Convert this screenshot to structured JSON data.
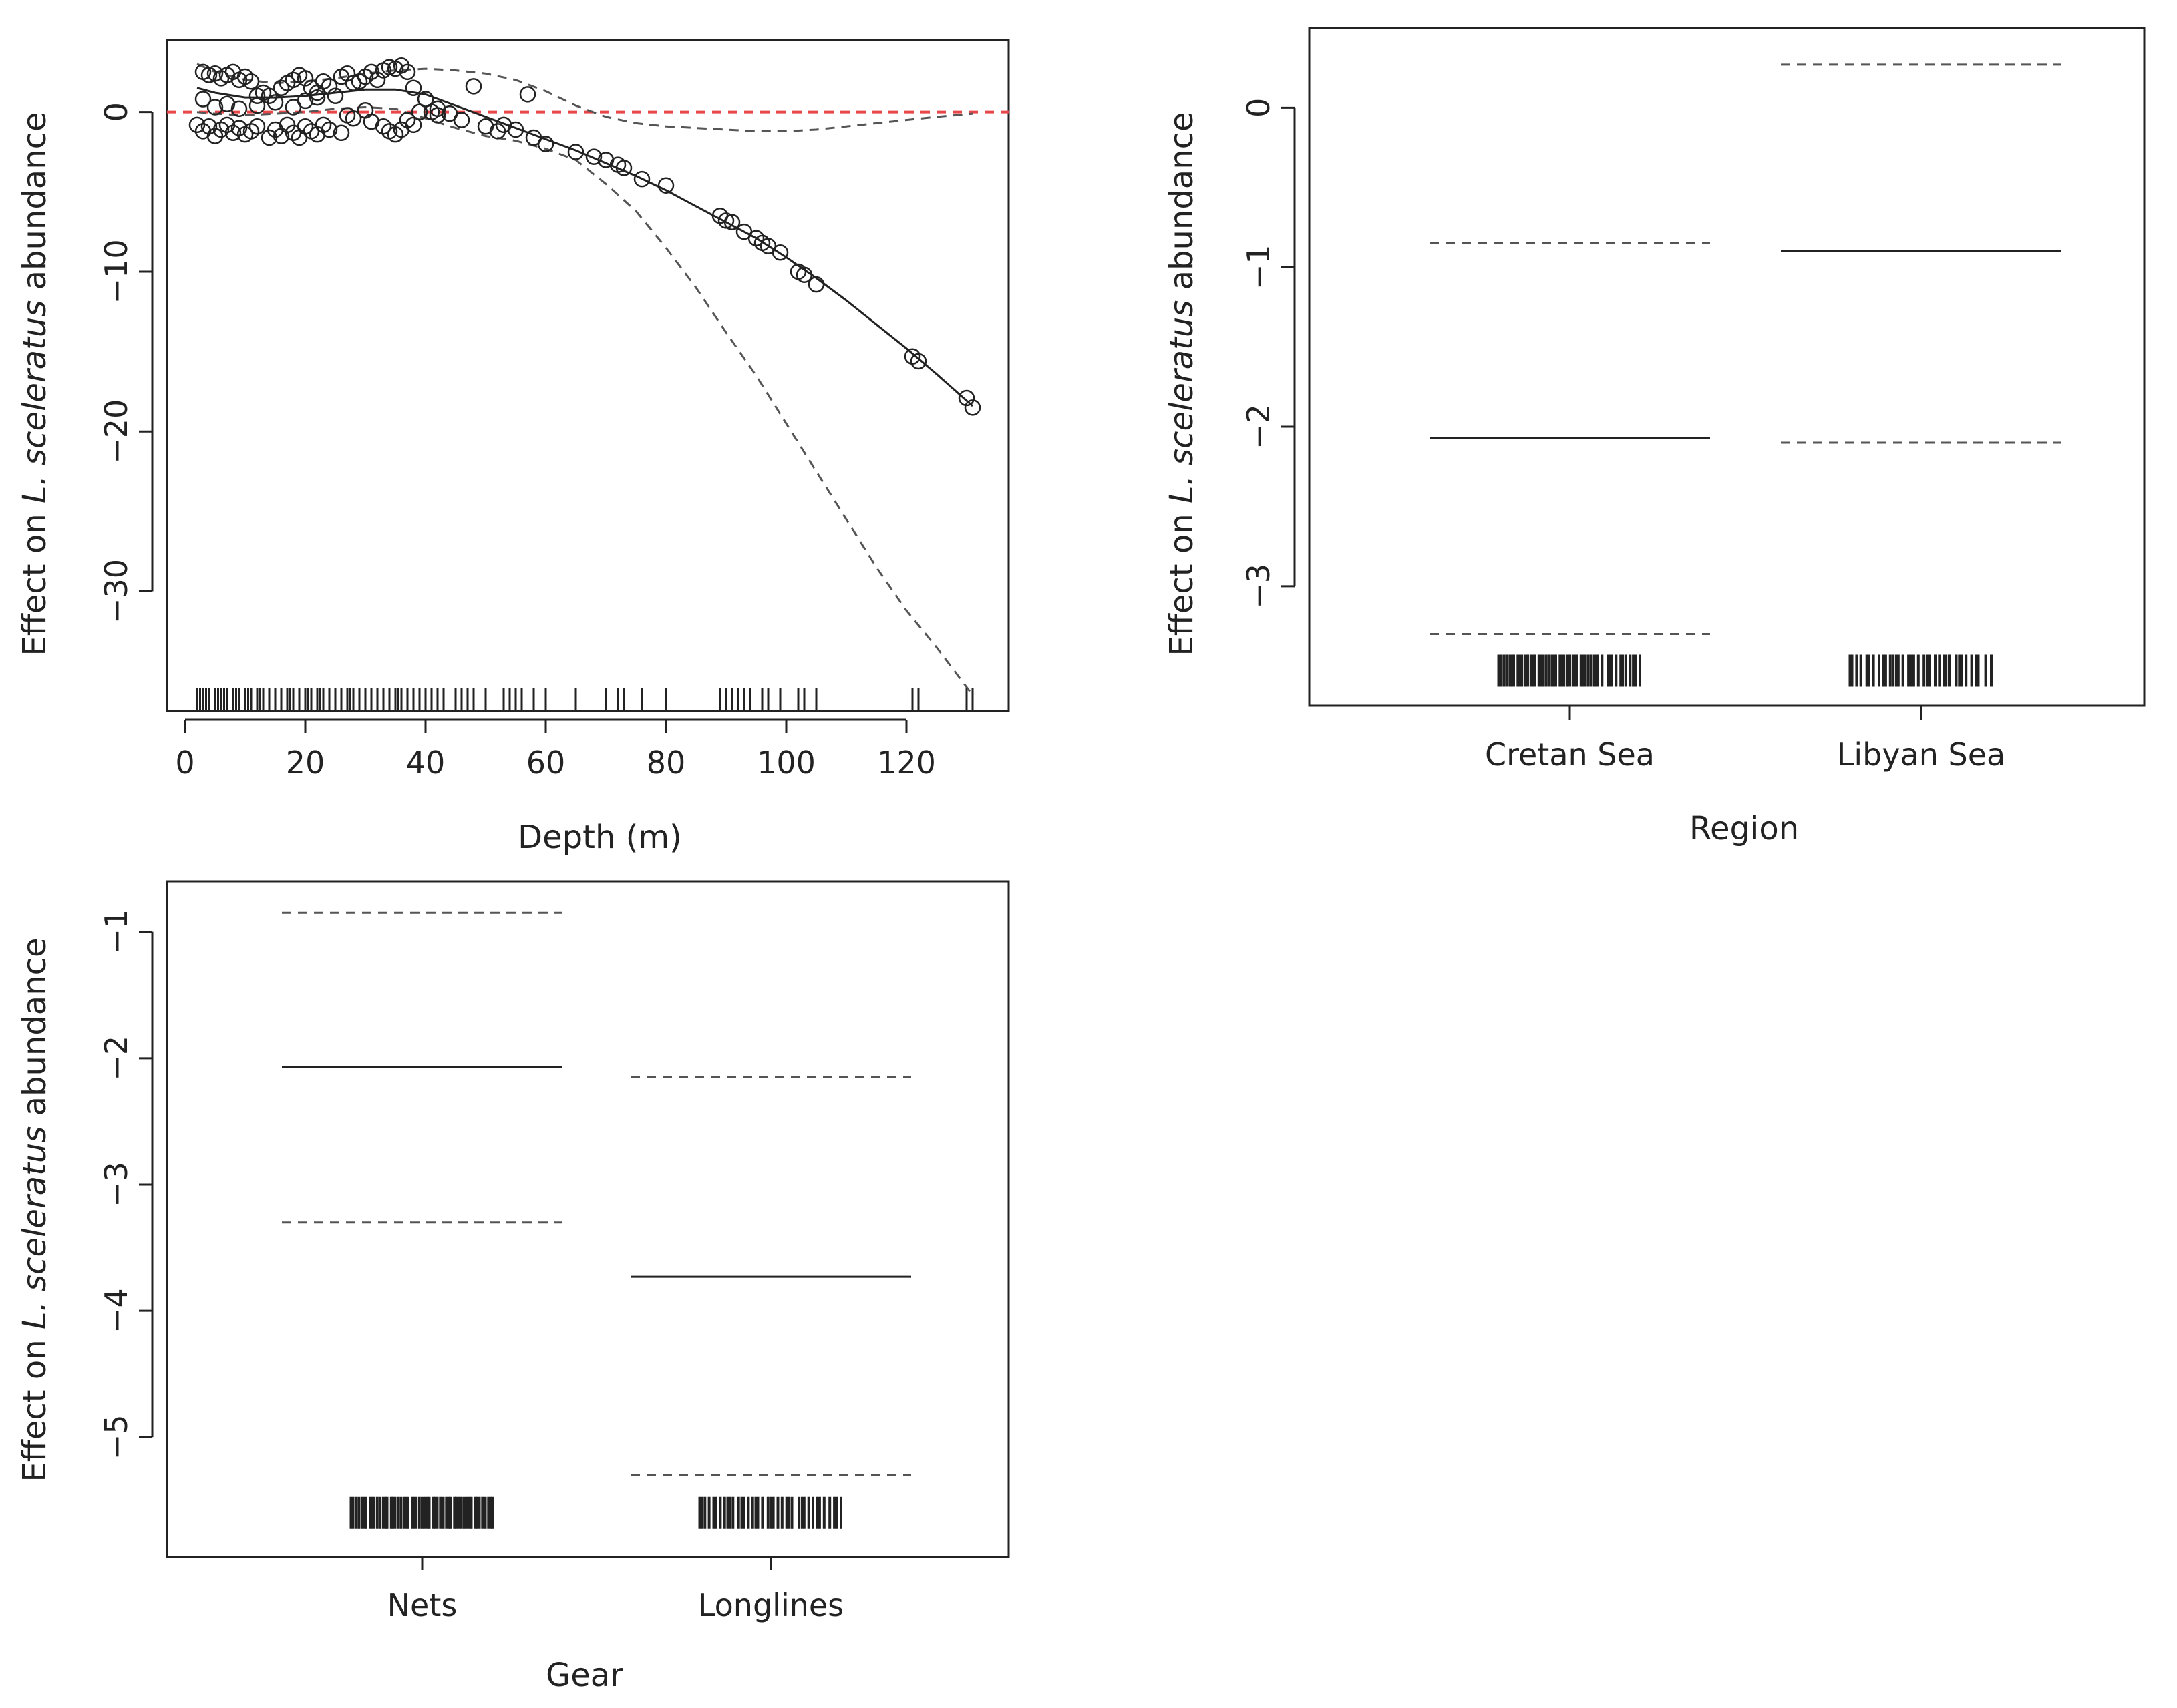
{
  "chart_data": [
    {
      "id": "depth",
      "type": "line",
      "title": "",
      "xlabel": "Depth (m)",
      "ylabel_prefix": "Effect on ",
      "ylabel_italic": "L. sceleratus",
      "ylabel_suffix": " abundance",
      "xlim": [
        -3,
        137
      ],
      "ylim": [
        -37.5,
        4.5
      ],
      "xticks": [
        0,
        20,
        40,
        60,
        80,
        100,
        120
      ],
      "yticks": [
        0,
        -10,
        -20,
        -30
      ],
      "xtick_labels": [
        "0",
        "20",
        "40",
        "60",
        "80",
        "100",
        "120"
      ],
      "ytick_labels": [
        "0",
        "−10",
        "−20",
        "−30"
      ],
      "reference_line": {
        "y": 0,
        "color": "#e8474a",
        "style": "dashed"
      },
      "series": [
        {
          "name": "smooth fit",
          "style": "solid",
          "x": [
            2,
            5,
            10,
            15,
            20,
            25,
            30,
            35,
            40,
            45,
            50,
            55,
            60,
            65,
            70,
            75,
            80,
            85,
            90,
            95,
            100,
            105,
            110,
            115,
            120,
            125,
            131
          ],
          "y": [
            1.5,
            1.2,
            0.9,
            0.9,
            1.0,
            1.2,
            1.4,
            1.4,
            1.1,
            0.4,
            -0.3,
            -1.0,
            -1.7,
            -2.4,
            -3.2,
            -4.0,
            -4.9,
            -5.9,
            -6.9,
            -7.9,
            -9.1,
            -10.4,
            -11.8,
            -13.3,
            -14.8,
            -16.4,
            -18.4
          ]
        },
        {
          "name": "upper 95% bound",
          "style": "dashed",
          "x": [
            2,
            5,
            10,
            15,
            20,
            25,
            30,
            35,
            40,
            45,
            50,
            55,
            60,
            65,
            70,
            75,
            80,
            85,
            90,
            95,
            100,
            105,
            110,
            115,
            120,
            125,
            131
          ],
          "y": [
            3.0,
            2.5,
            2.0,
            1.8,
            1.9,
            2.1,
            2.4,
            2.6,
            2.7,
            2.6,
            2.4,
            2.0,
            1.3,
            0.4,
            -0.3,
            -0.7,
            -0.9,
            -1.0,
            -1.1,
            -1.2,
            -1.2,
            -1.1,
            -0.9,
            -0.7,
            -0.5,
            -0.3,
            -0.1
          ]
        },
        {
          "name": "lower 95% bound",
          "style": "dashed",
          "x": [
            2,
            5,
            10,
            15,
            20,
            25,
            30,
            35,
            40,
            45,
            50,
            55,
            60,
            65,
            70,
            75,
            80,
            85,
            90,
            95,
            100,
            105,
            110,
            115,
            120,
            125,
            131
          ],
          "y": [
            0.0,
            -0.1,
            -0.2,
            -0.1,
            0.0,
            0.2,
            0.3,
            0.2,
            -0.4,
            -1.0,
            -1.5,
            -1.8,
            -2.3,
            -3.0,
            -4.5,
            -6.2,
            -8.5,
            -11.0,
            -13.8,
            -16.5,
            -19.5,
            -22.5,
            -25.5,
            -28.5,
            -31.2,
            -33.5,
            -36.5
          ]
        }
      ],
      "residuals": {
        "x": [
          3,
          4,
          5,
          6,
          7,
          8,
          9,
          10,
          11,
          12,
          13,
          14,
          16,
          17,
          18,
          19,
          20,
          21,
          22,
          23,
          24,
          25,
          26,
          27,
          28,
          29,
          30,
          31,
          32,
          33,
          34,
          35,
          36,
          37,
          38,
          40,
          41,
          42,
          44,
          46,
          48,
          50,
          52,
          53,
          55,
          57,
          58,
          60,
          65,
          68,
          70,
          72,
          73,
          76,
          80,
          89,
          90,
          91,
          93,
          95,
          96,
          97,
          99,
          102,
          103,
          105,
          121,
          122,
          130,
          131,
          2,
          3,
          4,
          5,
          6,
          7,
          8,
          9,
          10,
          11,
          12,
          14,
          15,
          16,
          17,
          18,
          19,
          20,
          21,
          22,
          23,
          24,
          26,
          27,
          28,
          30,
          31,
          33,
          34,
          35,
          36,
          37,
          38,
          39,
          42,
          3,
          5,
          7,
          9,
          12,
          15,
          18,
          20,
          22
        ],
        "y": [
          2.5,
          2.3,
          2.4,
          2.1,
          2.3,
          2.5,
          2.0,
          2.2,
          1.9,
          1.0,
          1.2,
          1.0,
          1.5,
          1.8,
          2.0,
          2.3,
          2.1,
          1.5,
          1.2,
          1.9,
          1.6,
          1.0,
          2.2,
          2.4,
          1.8,
          1.9,
          2.2,
          2.5,
          2.0,
          2.6,
          2.8,
          2.7,
          2.9,
          2.5,
          1.5,
          0.8,
          0.0,
          0.2,
          -0.1,
          -0.5,
          1.6,
          -0.9,
          -1.2,
          -0.8,
          -1.1,
          1.1,
          -1.6,
          -2.0,
          -2.5,
          -2.8,
          -3.0,
          -3.3,
          -3.5,
          -4.2,
          -4.6,
          -6.5,
          -6.8,
          -6.9,
          -7.5,
          -7.9,
          -8.2,
          -8.4,
          -8.8,
          -10.0,
          -10.2,
          -10.8,
          -15.3,
          -15.6,
          -17.9,
          -18.5,
          -0.8,
          -1.2,
          -0.9,
          -1.5,
          -1.1,
          -0.8,
          -1.3,
          -1.0,
          -1.4,
          -1.2,
          -0.9,
          -1.6,
          -1.1,
          -1.5,
          -0.8,
          -1.3,
          -1.6,
          -0.9,
          -1.2,
          -1.4,
          -0.8,
          -1.1,
          -1.3,
          -0.2,
          -0.4,
          0.1,
          -0.6,
          -0.9,
          -1.2,
          -1.4,
          -1.1,
          -0.5,
          -0.8,
          0.0,
          -0.2,
          0.8,
          0.3,
          0.5,
          0.2,
          0.4,
          0.6,
          0.3,
          0.7,
          0.9
        ]
      },
      "rug": [
        2,
        2.5,
        3,
        3.5,
        4,
        5,
        5.5,
        6,
        6.5,
        7,
        8,
        8.5,
        9,
        10,
        10.5,
        11,
        12,
        12.5,
        13,
        14,
        15,
        16,
        17,
        17.5,
        18,
        19,
        20,
        20.5,
        21,
        22,
        22.5,
        23,
        24,
        25,
        26,
        27,
        27.5,
        28,
        29,
        30,
        31,
        32,
        33,
        34,
        35,
        35.5,
        36,
        37,
        38,
        39,
        40,
        41,
        42,
        43,
        45,
        46,
        47,
        48,
        50,
        53,
        54,
        55,
        56,
        58,
        60,
        65,
        70,
        72,
        73,
        76,
        80,
        89,
        90,
        91,
        92,
        93,
        94,
        96,
        97,
        99,
        102,
        103,
        105,
        121,
        122,
        130,
        131
      ]
    },
    {
      "id": "region",
      "type": "bar",
      "title": "",
      "xlabel": "Region",
      "ylabel_prefix": "Effect on ",
      "ylabel_italic": "L. sceleratus",
      "ylabel_suffix": " abundance",
      "categories": [
        "Cretan Sea",
        "Libyan Sea"
      ],
      "ylim": [
        -3.75,
        0.5
      ],
      "yticks": [
        0,
        -1,
        -2,
        -3
      ],
      "ytick_labels": [
        "0",
        "−1",
        "−2",
        "−3"
      ],
      "series": [
        {
          "name": "effect",
          "style": "solid",
          "values": [
            -2.07,
            -0.9
          ]
        },
        {
          "name": "upper 95% bound",
          "style": "dashed",
          "values": [
            -0.85,
            0.27
          ]
        },
        {
          "name": "lower 95% bound",
          "style": "dashed",
          "values": [
            -3.3,
            -2.1
          ]
        }
      ],
      "rug_level": -3.53,
      "rug_patterns": [
        [
          0.0,
          0.03,
          0.05,
          0.08,
          0.1,
          0.13,
          0.15,
          0.18,
          0.2,
          0.23,
          0.25,
          0.28,
          0.3,
          0.33,
          0.35,
          0.38,
          0.4,
          0.43,
          0.45,
          0.48,
          0.5,
          0.53,
          0.55,
          0.58,
          0.6,
          0.63,
          0.65,
          0.68,
          0.7,
          0.73,
          0.78,
          0.8,
          0.83,
          0.87,
          0.9,
          0.93,
          0.96,
          1.0
        ],
        [
          0.0,
          0.04,
          0.07,
          0.12,
          0.16,
          0.2,
          0.24,
          0.28,
          0.3,
          0.33,
          0.37,
          0.41,
          0.44,
          0.48,
          0.52,
          0.55,
          0.6,
          0.63,
          0.67,
          0.7,
          0.75,
          0.78,
          0.82,
          0.86,
          0.9,
          0.96,
          1.0
        ]
      ]
    },
    {
      "id": "gear",
      "type": "bar",
      "title": "",
      "xlabel": "Gear",
      "ylabel_prefix": "Effect on ",
      "ylabel_italic": "L. sceleratus",
      "ylabel_suffix": " abundance",
      "categories": [
        "Nets",
        "Longlines"
      ],
      "ylim": [
        -5.95,
        -0.6
      ],
      "yticks": [
        -1,
        -2,
        -3,
        -4,
        -5
      ],
      "ytick_labels": [
        "−1",
        "−2",
        "−3",
        "−4",
        "−5"
      ],
      "series": [
        {
          "name": "effect",
          "style": "solid",
          "values": [
            -2.07,
            -3.73
          ]
        },
        {
          "name": "upper 95% bound",
          "style": "dashed",
          "values": [
            -0.85,
            -2.15
          ]
        },
        {
          "name": "lower 95% bound",
          "style": "dashed",
          "values": [
            -3.3,
            -5.3
          ]
        }
      ],
      "rug_level": -5.6,
      "rug_patterns": [
        [
          0.0,
          0.03,
          0.05,
          0.08,
          0.1,
          0.13,
          0.15,
          0.18,
          0.2,
          0.23,
          0.25,
          0.28,
          0.3,
          0.33,
          0.35,
          0.38,
          0.4,
          0.43,
          0.45,
          0.48,
          0.5,
          0.53,
          0.55,
          0.58,
          0.6,
          0.63,
          0.65,
          0.68,
          0.7,
          0.73,
          0.75,
          0.78,
          0.8,
          0.83,
          0.85,
          0.88,
          0.9,
          0.93,
          0.95,
          0.98,
          1.0
        ],
        [
          0.0,
          0.03,
          0.06,
          0.1,
          0.14,
          0.17,
          0.2,
          0.23,
          0.27,
          0.3,
          0.34,
          0.37,
          0.4,
          0.44,
          0.48,
          0.51,
          0.55,
          0.58,
          0.62,
          0.65,
          0.7,
          0.73,
          0.77,
          0.8,
          0.84,
          0.88,
          0.92,
          0.96,
          1.0
        ]
      ]
    }
  ]
}
